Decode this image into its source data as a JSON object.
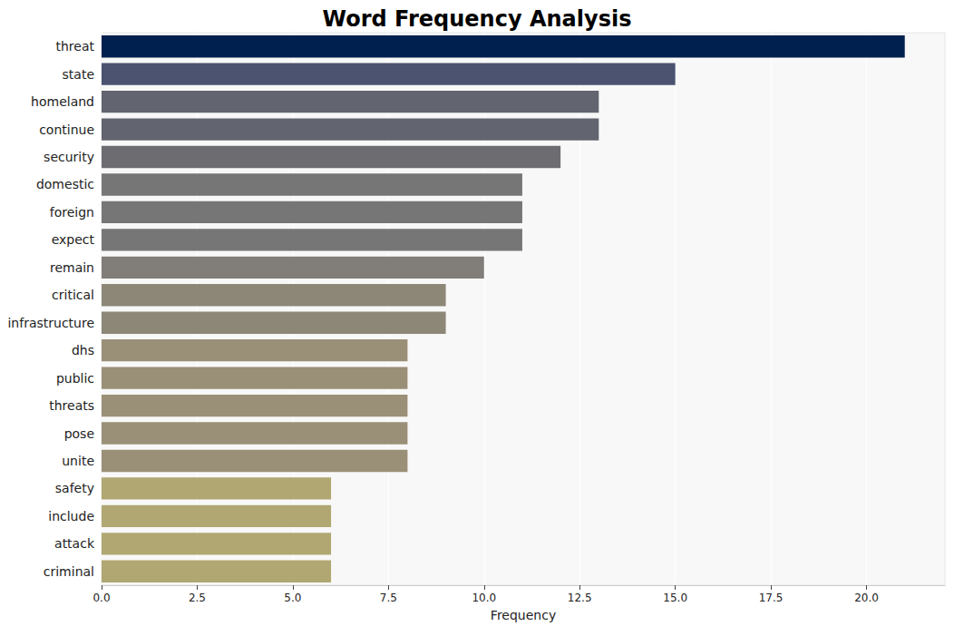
{
  "chart_data": {
    "type": "bar",
    "title": "Word Frequency Analysis",
    "x_label": "Frequency",
    "orientation": "horizontal",
    "grid": true,
    "categories": [
      "threat",
      "state",
      "homeland",
      "continue",
      "security",
      "domestic",
      "foreign",
      "expect",
      "remain",
      "critical",
      "infrastructure",
      "dhs",
      "public",
      "threats",
      "pose",
      "unite",
      "safety",
      "include",
      "attack",
      "criminal"
    ],
    "values": [
      21,
      15,
      13,
      13,
      12,
      11,
      11,
      11,
      10,
      9,
      9,
      8,
      8,
      8,
      8,
      8,
      6,
      6,
      6,
      6
    ],
    "colors": [
      "#00204f",
      "#4b5370",
      "#62646f",
      "#62646f",
      "#6c6c71",
      "#767676",
      "#767676",
      "#767676",
      "#817e79",
      "#8d8778",
      "#8d8778",
      "#9a9077",
      "#9a9077",
      "#9a9077",
      "#9a9077",
      "#9a9077",
      "#b1a772",
      "#b1a772",
      "#b1a772",
      "#b1a772"
    ],
    "xlim": [
      0,
      22.05
    ],
    "xticks": [
      {
        "value": 0,
        "label": "0.0"
      },
      {
        "value": 2.5,
        "label": "2.5"
      },
      {
        "value": 5,
        "label": "5.0"
      },
      {
        "value": 7.5,
        "label": "7.5"
      },
      {
        "value": 10,
        "label": "10.0"
      },
      {
        "value": 12.5,
        "label": "12.5"
      },
      {
        "value": 15,
        "label": "15.0"
      },
      {
        "value": 17.5,
        "label": "17.5"
      },
      {
        "value": 20,
        "label": "20.0"
      }
    ]
  }
}
